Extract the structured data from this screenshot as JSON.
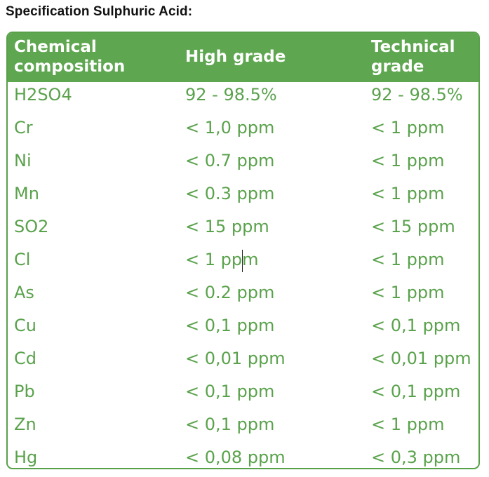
{
  "title": "Specification Sulphuric Acid:",
  "table": {
    "headers": [
      "Chemical\ncomposition",
      "High grade",
      "Technical\ngrade"
    ],
    "rows": [
      [
        "H2SO4",
        "92 - 98.5%",
        "92 - 98.5%"
      ],
      [
        "Cr",
        "< 1,0 ppm",
        "< 1 ppm"
      ],
      [
        "Ni",
        "< 0.7 ppm",
        "< 1 ppm"
      ],
      [
        "Mn",
        "< 0.3 ppm",
        "< 1 ppm"
      ],
      [
        "SO2",
        "< 15 ppm",
        "< 15 ppm"
      ],
      [
        "Cl",
        "< 1 ppm",
        "< 1 ppm"
      ],
      [
        "As",
        "< 0.2 ppm",
        "< 1 ppm"
      ],
      [
        "Cu",
        "< 0,1 ppm",
        "< 0,1 ppm"
      ],
      [
        "Cd",
        "< 0,01 ppm",
        "< 0,01 ppm"
      ],
      [
        "Pb",
        "< 0,1 ppm",
        "< 0,1 ppm"
      ],
      [
        "Zn",
        "< 0,1 ppm",
        "< 1 ppm"
      ],
      [
        "Hg",
        "< 0,08 ppm",
        "< 0,3 ppm"
      ]
    ]
  },
  "colors": {
    "header_bg": "#5ea64f",
    "text_green": "#5aa24c",
    "border": "#58a04a"
  }
}
